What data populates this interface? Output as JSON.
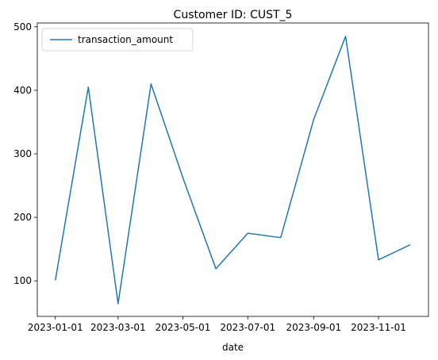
{
  "chart_data": {
    "type": "line",
    "title": "Customer ID: CUST_5",
    "xlabel": "date",
    "ylabel": "",
    "x": [
      "2023-01-01",
      "2023-02-01",
      "2023-03-01",
      "2023-04-01",
      "2023-05-01",
      "2023-06-01",
      "2023-07-01",
      "2023-08-01",
      "2023-09-01",
      "2023-10-01",
      "2023-11-01",
      "2023-12-01"
    ],
    "series": [
      {
        "name": "transaction_amount",
        "color": "#1f77b4",
        "values": [
          101,
          405,
          64,
          410,
          262,
          119,
          175,
          168,
          354,
          485,
          133,
          157
        ]
      }
    ],
    "ylim": [
      44,
      506
    ],
    "xlim": [
      "2022-12-15",
      "2023-12-18"
    ],
    "xticks": [
      "2023-01-01",
      "2023-03-01",
      "2023-05-01",
      "2023-07-01",
      "2023-09-01",
      "2023-11-01"
    ],
    "yticks": [
      100,
      200,
      300,
      400,
      500
    ],
    "legend": "top-left",
    "grid": false
  }
}
